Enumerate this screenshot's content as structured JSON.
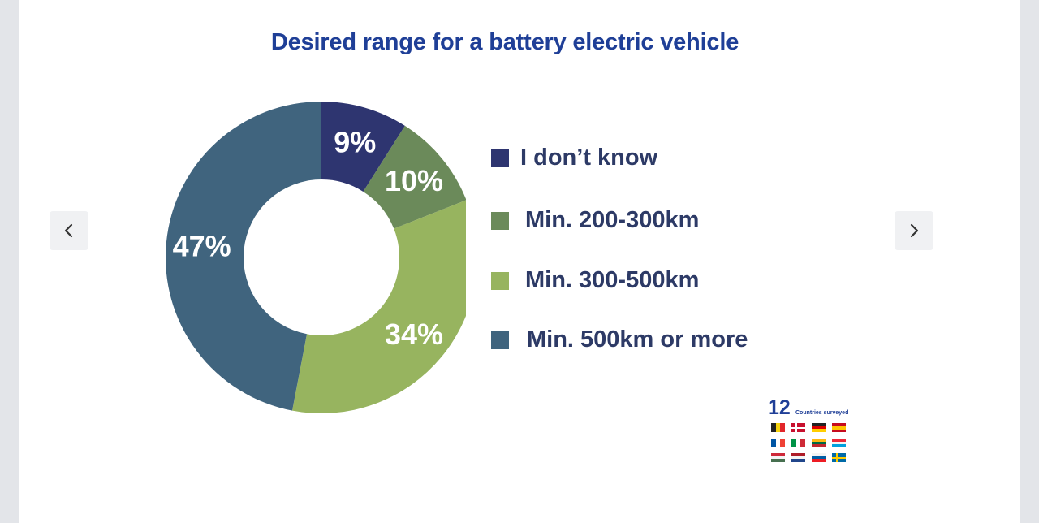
{
  "chart_data": {
    "type": "donut",
    "title": "Desired range for a battery electric vehicle",
    "series": [
      {
        "name": "I don’t know",
        "value": 9,
        "label": "9%",
        "color": "#2e3570"
      },
      {
        "name": "Min. 200-300km",
        "value": 10,
        "label": "10%",
        "color": "#6b8a5a"
      },
      {
        "name": "Min. 300-500km",
        "value": 34,
        "label": "34%",
        "color": "#97b45f"
      },
      {
        "name": "Min. 500km or more",
        "value": 47,
        "label": "47%",
        "color": "#40647e"
      }
    ],
    "legend_position": "right"
  },
  "navigation": {
    "prev_icon": "chevron-left-icon",
    "next_icon": "chevron-right-icon"
  },
  "badge": {
    "count": "12",
    "text": "Countries surveyed",
    "flags": [
      "belgium-flag",
      "denmark-flag",
      "germany-flag",
      "spain-flag",
      "france-flag",
      "italy-flag",
      "lithuania-flag",
      "luxembourg-flag",
      "hungary-flag",
      "netherlands-flag",
      "slovenia-flag",
      "sweden-flag"
    ]
  },
  "colors": {
    "title": "#1f3f97",
    "legend_text": "#2d3a66"
  }
}
